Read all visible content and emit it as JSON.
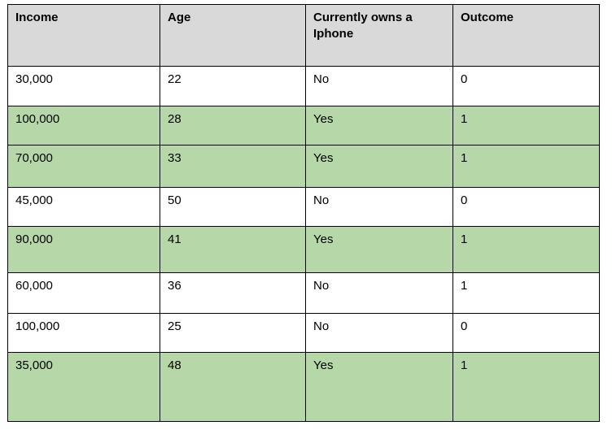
{
  "table": {
    "columns": [
      "Income",
      "Age",
      "Currently owns a Iphone",
      "Outcome"
    ],
    "rows": [
      {
        "cells": [
          "30,000",
          "22",
          "No",
          "0"
        ],
        "highlight": false
      },
      {
        "cells": [
          "100,000",
          "28",
          "Yes",
          "1"
        ],
        "highlight": true
      },
      {
        "cells": [
          "70,000",
          "33",
          "Yes",
          "1"
        ],
        "highlight": true
      },
      {
        "cells": [
          "45,000",
          "50",
          "No",
          "0"
        ],
        "highlight": false
      },
      {
        "cells": [
          "90,000",
          "41",
          "Yes",
          "1"
        ],
        "highlight": true
      },
      {
        "cells": [
          "60,000",
          "36",
          "No",
          "1"
        ],
        "highlight": false
      },
      {
        "cells": [
          "100,000",
          "25",
          "No",
          "0"
        ],
        "highlight": false
      },
      {
        "cells": [
          "35,000",
          "48",
          "Yes",
          "1"
        ],
        "highlight": true
      }
    ],
    "colors": {
      "header_bg": "#d9d9d9",
      "highlight_bg": "#b6d7a8",
      "row_bg": "#ffffff",
      "border": "#000000"
    }
  }
}
